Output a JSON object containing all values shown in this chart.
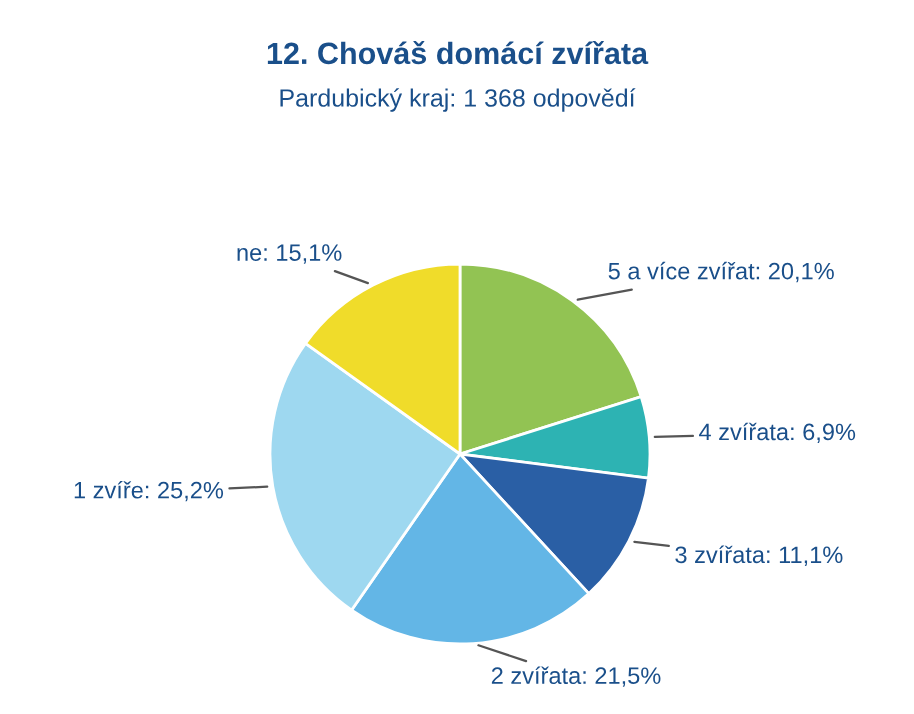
{
  "chart_data": {
    "type": "pie",
    "title": "12. Chováš domácí zvířata",
    "subtitle": "Pardubický kraj: 1 368 odpovědí",
    "categories": [
      "5 a více zvířat",
      "4 zvířata",
      "3 zvířata",
      "2 zvířata",
      "1 zvíře",
      "ne"
    ],
    "values": [
      20.1,
      6.9,
      11.1,
      21.5,
      25.2,
      15.1
    ],
    "value_labels": [
      "20,1%",
      "6,9%",
      "11,1%",
      "21,5%",
      "25,2%",
      "15,1%"
    ],
    "colors": [
      "#92c353",
      "#2db3b3",
      "#2a5fa5",
      "#63b6e6",
      "#9ed8f0",
      "#f0dc2a"
    ]
  }
}
